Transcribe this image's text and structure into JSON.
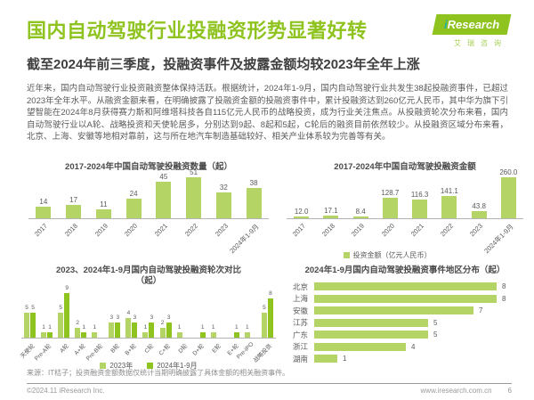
{
  "page": {
    "title": "国内自动驾驶行业投融资形势显著好转",
    "subtitle": "截至2024年前三季度，投融资事件及披露金额均较2023年全年上涨",
    "body": "近年来，国内自动驾驶行业投资融资整体保持活跃。根据统计，2024年1-9月，国内自动驾驶行业共发生38起投融资事件，已超过2023年全年水平。从融资金额来看，在明确披露了投融资金额的投融资事件中，累计投融资达到260亿元人民币，其中华为旗下引望智能在2024年8月获得赛力斯和阿维塔科技各自115亿元人民币的战略投资，成为行业关注焦点。从投融资轮次分布来看，国内自动驾驶行业以A轮、战略投资和天使轮居多，分别达到9起、8起和5起，C轮后的融资目前依然较少。从投融资区域分布来看，北京、上海、安徽等地相对靠前，这与所在地汽车制造基础较好、相关产业体系较为完善等有关。"
  },
  "logo": {
    "brand_i": "i",
    "brand_rest": "Research",
    "brand_cn": "艾瑞咨询"
  },
  "colors": {
    "brand_green": "#8FC31F",
    "light_green": "#B5D466",
    "dark_green": "#8FC31F"
  },
  "chart_data": [
    {
      "id": "events",
      "type": "bar",
      "title": "2017-2024年中国自动驾驶投融资数量（起）",
      "categories": [
        "2017",
        "2018",
        "2019",
        "2020",
        "2021",
        "2022",
        "2023",
        "2024年1-9月"
      ],
      "values": [
        14,
        17,
        11,
        24,
        45,
        51,
        32,
        38
      ],
      "decimals": 0,
      "ylim": [
        0,
        51
      ],
      "bar_color": "#B5D466",
      "grid": false
    },
    {
      "id": "amount",
      "type": "bar",
      "title": "2017-2024年中国自动驾驶投融资金额",
      "categories": [
        "2017",
        "2018",
        "2019",
        "2020",
        "2021",
        "2022",
        "2023",
        "2024年1-9月"
      ],
      "values": [
        12.0,
        17.1,
        8.4,
        128.7,
        116.3,
        141.1,
        43.8,
        260.0
      ],
      "decimals": 1,
      "ylim": [
        0,
        260
      ],
      "bar_color": "#B5D466",
      "grid": false,
      "legend": [
        {
          "label": "投资金额（亿元人民币）",
          "color": "#B5D466"
        }
      ]
    },
    {
      "id": "rounds",
      "type": "bar",
      "title": "2023、2024年1-9月国内自动驾驶投融资轮次对比",
      "title_line2": "（起）",
      "categories": [
        "天使轮",
        "Pre-A轮",
        "A轮",
        "A+轮",
        "Pre-B轮",
        "B轮",
        "B+轮",
        "C轮",
        "C+轮",
        "D轮",
        "D+轮",
        "E轮",
        "E+轮",
        "Pre-IPO",
        "战略投资"
      ],
      "series": [
        {
          "name": "2023年",
          "color": "#B5D466",
          "values": [
            5,
            1,
            5,
            2,
            1,
            3,
            4,
            1,
            2,
            1,
            0,
            1,
            0,
            1,
            5
          ]
        },
        {
          "name": "2024年1-9月",
          "color": "#8FC31F",
          "values": [
            5,
            1,
            9,
            1,
            0,
            3,
            3,
            3,
            3,
            0,
            1,
            0,
            1,
            0,
            8
          ]
        }
      ],
      "decimals": 0,
      "ylim": [
        0,
        9
      ],
      "grid": false,
      "legend": [
        {
          "label": "2023年",
          "color": "#B5D466"
        },
        {
          "label": "2024年1-9月",
          "color": "#8FC31F"
        }
      ]
    },
    {
      "id": "regions",
      "type": "bar",
      "orientation": "horizontal",
      "title": "2024年1-9月国内自动驾驶投融资事件地区分布（起）",
      "categories": [
        "北京",
        "上海",
        "安徽",
        "江苏",
        "广东",
        "浙江",
        "湖南"
      ],
      "values": [
        8,
        8,
        7,
        5,
        5,
        4,
        1
      ],
      "decimals": 0,
      "xlim": [
        0,
        8
      ],
      "bar_color": "#B5D466",
      "grid": false
    }
  ],
  "footer": {
    "source_note": "来源：IT桔子；投资融资金额数据仅统计当期明确披露了具体金额的相关融资事件。",
    "copyright": "©2024.11 iResearch Inc.",
    "website": "www.iresearch.com.cn",
    "page_number": "6"
  }
}
